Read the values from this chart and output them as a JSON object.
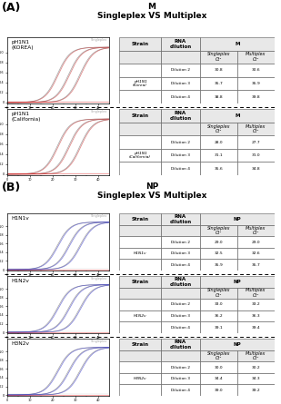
{
  "title_A": "(A)",
  "title_B": "(B)",
  "section_A_title": "M\nSingleplex VS Multiplex",
  "section_B_title": "NP\nSingleplex VS Multiplex",
  "panel_A": [
    {
      "label": "pH1N1\n(KOREA)",
      "strain": "pH1N1\n(Korea)",
      "col_header": "M",
      "rows": [
        [
          "Dilution 2",
          "30.8",
          "30.6"
        ],
        [
          "Dilution 3",
          "35.7",
          "35.9"
        ],
        [
          "Dilution 4",
          "38.8",
          "39.8"
        ]
      ],
      "singleplex_color": "#888888",
      "multiplex_color": "#cc4444"
    },
    {
      "label": "pH1N1\n(California)",
      "strain": "pH1N1\n(California)",
      "col_header": "M",
      "rows": [
        [
          "Dilution 2",
          "28.0",
          "27.7"
        ],
        [
          "Dilution 3",
          "31.1",
          "31.0"
        ],
        [
          "Dilution 4",
          "35.6",
          "34.8"
        ]
      ],
      "singleplex_color": "#888888",
      "multiplex_color": "#cc4444"
    }
  ],
  "panel_B": [
    {
      "label": "H1N1v",
      "strain": "H1N1v",
      "col_header": "NP",
      "rows": [
        [
          "Dilution 2",
          "29.0",
          "29.0"
        ],
        [
          "Dilution 3",
          "32.5",
          "32.6"
        ],
        [
          "Dilution 4",
          "35.9",
          "35.7"
        ]
      ],
      "singleplex_color": "#888888",
      "multiplex_color": "#4444cc"
    },
    {
      "label": "H1N2v",
      "strain": "H1N2v",
      "col_header": "NP",
      "rows": [
        [
          "Dilution 2",
          "33.0",
          "33.2"
        ],
        [
          "Dilution 3",
          "36.2",
          "36.3"
        ],
        [
          "Dilution 4",
          "39.1",
          "39.4"
        ]
      ],
      "singleplex_color": "#888888",
      "multiplex_color": "#4444cc"
    },
    {
      "label": "H3N2v",
      "strain": "H3N2v",
      "col_header": "NP",
      "rows": [
        [
          "Dilution 2",
          "30.0",
          "30.2"
        ],
        [
          "Dilution 3",
          "34.4",
          "34.3"
        ],
        [
          "Dilution 4",
          "39.0",
          "39.2"
        ]
      ],
      "singleplex_color": "#888888",
      "multiplex_color": "#4444cc"
    }
  ],
  "background_color": "#ffffff"
}
